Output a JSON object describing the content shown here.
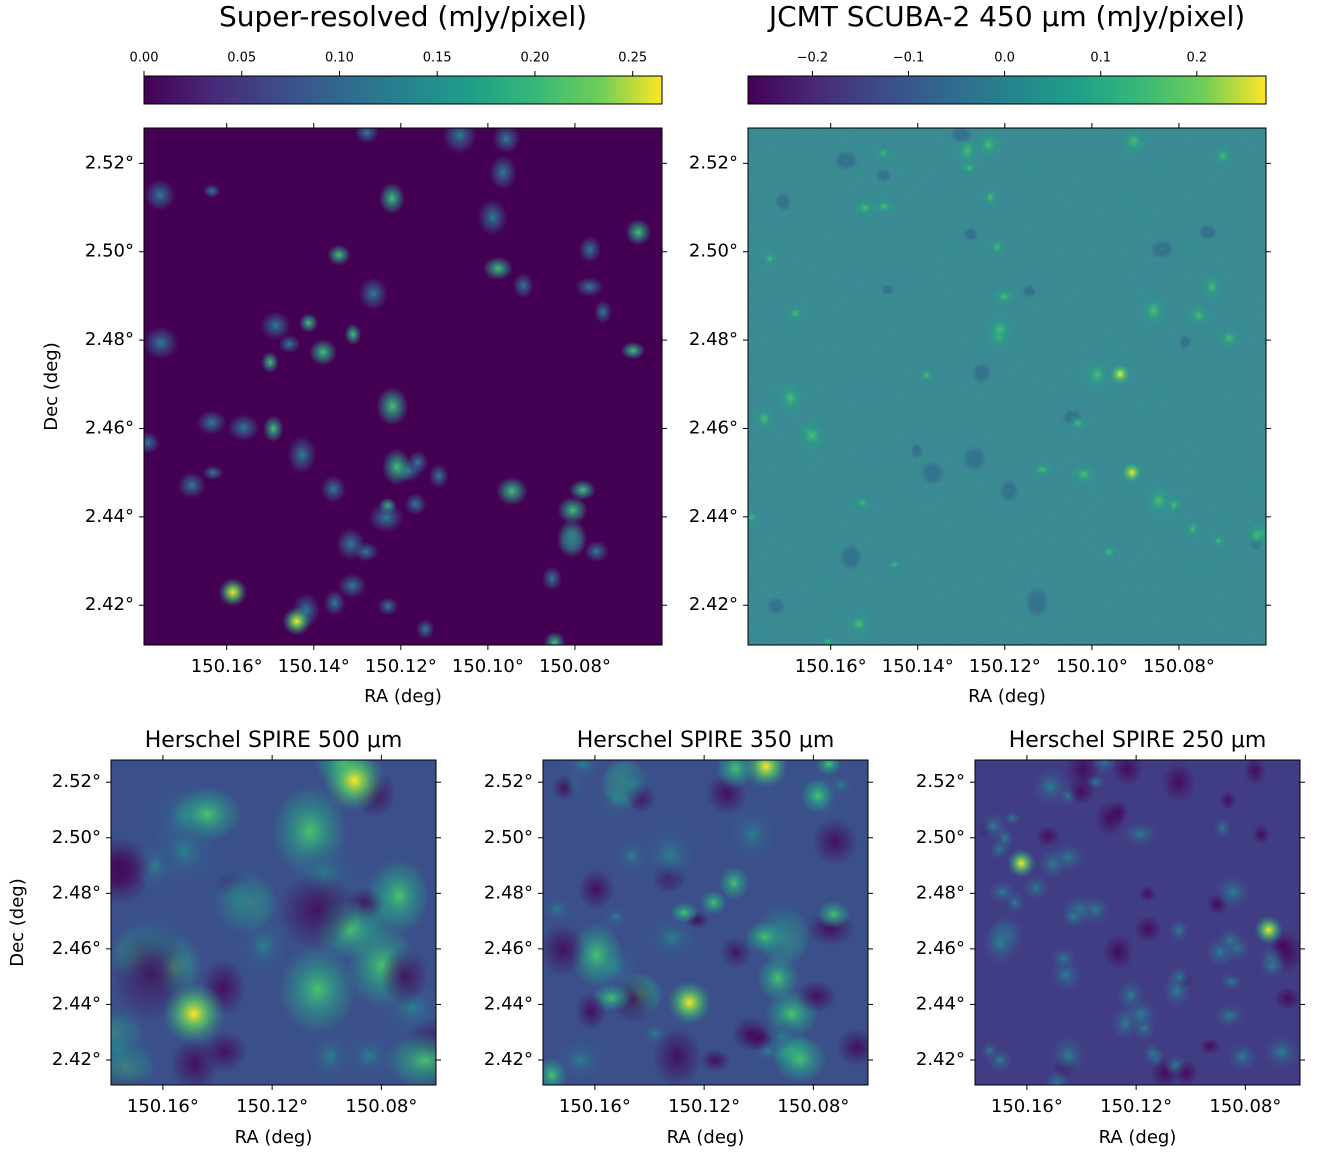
{
  "chart_data": [
    {
      "type": "image",
      "title": "Super-resolved (mJy/pixel)",
      "xlabel": "RA (deg)",
      "ylabel": "Dec (deg)",
      "xlim": [
        150.179,
        150.06
      ],
      "ylim": [
        2.411,
        2.528
      ],
      "xticks": [
        {
          "value": 150.16,
          "label": "150.16°"
        },
        {
          "value": 150.14,
          "label": "150.14°"
        },
        {
          "value": 150.12,
          "label": "150.12°"
        },
        {
          "value": 150.1,
          "label": "150.10°"
        },
        {
          "value": 150.08,
          "label": "150.08°"
        }
      ],
      "yticks": [
        {
          "value": 2.42,
          "label": "2.42°"
        },
        {
          "value": 2.44,
          "label": "2.44°"
        },
        {
          "value": 2.46,
          "label": "2.46°"
        },
        {
          "value": 2.48,
          "label": "2.48°"
        },
        {
          "value": 2.5,
          "label": "2.50°"
        },
        {
          "value": 2.52,
          "label": "2.52°"
        }
      ],
      "colorbar": {
        "lim": [
          0,
          0.265
        ],
        "ticks": [
          {
            "value": 0,
            "label": "0.00"
          },
          {
            "value": 0.05,
            "label": "0.05"
          },
          {
            "value": 0.1,
            "label": "0.10"
          },
          {
            "value": 0.15,
            "label": "0.15"
          },
          {
            "value": 0.2,
            "label": "0.20"
          },
          {
            "value": 0.25,
            "label": "0.25"
          }
        ]
      }
    },
    {
      "type": "image",
      "title": "JCMT SCUBA-2 450 μm (mJy/pixel)",
      "xlabel": "RA (deg)",
      "xlim": [
        150.179,
        150.06
      ],
      "ylim": [
        2.411,
        2.528
      ],
      "xticks": [
        {
          "value": 150.16,
          "label": "150.16°"
        },
        {
          "value": 150.14,
          "label": "150.14°"
        },
        {
          "value": 150.12,
          "label": "150.12°"
        },
        {
          "value": 150.1,
          "label": "150.10°"
        },
        {
          "value": 150.08,
          "label": "150.08°"
        }
      ],
      "yticks": [
        {
          "value": 2.42,
          "label": "2.42°"
        },
        {
          "value": 2.44,
          "label": "2.44°"
        },
        {
          "value": 2.46,
          "label": "2.46°"
        },
        {
          "value": 2.48,
          "label": "2.48°"
        },
        {
          "value": 2.5,
          "label": "2.50°"
        },
        {
          "value": 2.52,
          "label": "2.52°"
        }
      ],
      "colorbar": {
        "lim": [
          -0.267,
          0.272
        ],
        "ticks": [
          {
            "value": -0.2,
            "label": "−0.2"
          },
          {
            "value": -0.1,
            "label": "−0.1"
          },
          {
            "value": 0,
            "label": "0.0"
          },
          {
            "value": 0.1,
            "label": "0.1"
          },
          {
            "value": 0.2,
            "label": "0.2"
          }
        ]
      }
    },
    {
      "type": "image",
      "title": "Herschel SPIRE 500 μm",
      "xlabel": "RA (deg)",
      "ylabel": "Dec (deg)",
      "xlim": [
        150.179,
        150.06
      ],
      "ylim": [
        2.411,
        2.528
      ],
      "xticks": [
        {
          "value": 150.16,
          "label": "150.16°"
        },
        {
          "value": 150.12,
          "label": "150.12°"
        },
        {
          "value": 150.08,
          "label": "150.08°"
        }
      ],
      "yticks": [
        {
          "value": 2.42,
          "label": "2.42°"
        },
        {
          "value": 2.44,
          "label": "2.44°"
        },
        {
          "value": 2.46,
          "label": "2.46°"
        },
        {
          "value": 2.48,
          "label": "2.48°"
        },
        {
          "value": 2.5,
          "label": "2.50°"
        },
        {
          "value": 2.52,
          "label": "2.52°"
        }
      ]
    },
    {
      "type": "image",
      "title": "Herschel SPIRE 350 μm",
      "xlabel": "RA (deg)",
      "xlim": [
        150.179,
        150.06
      ],
      "ylim": [
        2.411,
        2.528
      ],
      "xticks": [
        {
          "value": 150.16,
          "label": "150.16°"
        },
        {
          "value": 150.12,
          "label": "150.12°"
        },
        {
          "value": 150.08,
          "label": "150.08°"
        }
      ],
      "yticks": [
        {
          "value": 2.42,
          "label": "2.42°"
        },
        {
          "value": 2.44,
          "label": "2.44°"
        },
        {
          "value": 2.46,
          "label": "2.46°"
        },
        {
          "value": 2.48,
          "label": "2.48°"
        },
        {
          "value": 2.5,
          "label": "2.50°"
        },
        {
          "value": 2.52,
          "label": "2.52°"
        }
      ]
    },
    {
      "type": "image",
      "title": "Herschel SPIRE 250 μm",
      "xlabel": "RA (deg)",
      "xlim": [
        150.179,
        150.06
      ],
      "ylim": [
        2.411,
        2.528
      ],
      "xticks": [
        {
          "value": 150.16,
          "label": "150.16°"
        },
        {
          "value": 150.12,
          "label": "150.12°"
        },
        {
          "value": 150.08,
          "label": "150.08°"
        }
      ],
      "yticks": [
        {
          "value": 2.42,
          "label": "2.42°"
        },
        {
          "value": 2.44,
          "label": "2.44°"
        },
        {
          "value": 2.46,
          "label": "2.46°"
        },
        {
          "value": 2.48,
          "label": "2.48°"
        },
        {
          "value": 2.5,
          "label": "2.50°"
        },
        {
          "value": 2.52,
          "label": "2.52°"
        }
      ]
    }
  ]
}
